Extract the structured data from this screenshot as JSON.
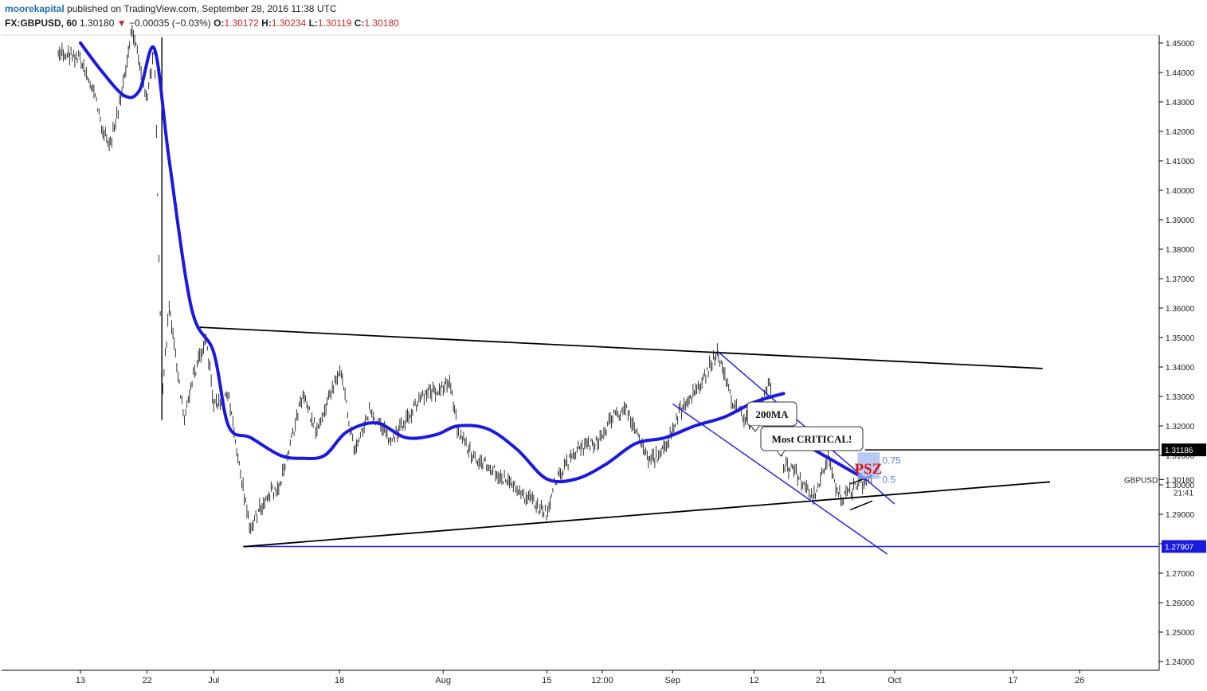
{
  "header": {
    "username": "moorekapital",
    "published": "published on TradingView.com, September 28, 2016 11:38 UTC",
    "symbol": "FX:GBPUSD, 60",
    "last": "1.30180",
    "arrow": "▼",
    "change": "−0.00035 (−0.03%)",
    "o_label": "O:",
    "o_value": "1.30172",
    "h_label": "H:",
    "h_value": "1.30234",
    "l_label": "L:",
    "l_value": "1.30119",
    "c_label": "C:",
    "c_value": "1.30180"
  },
  "colors": {
    "ma": "#1a1adf",
    "channel": "#2424e8",
    "trend": "#000000",
    "price_bars": "#000000",
    "psz_box": "#9db8f0",
    "psz_text": "#e01010",
    "fib_text": "#5b86e0",
    "support_label_bg": "#1a1adf",
    "resistance_label_bg": "#000000"
  },
  "chart_data": {
    "type": "ohlc",
    "symbol": "FX:GBPUSD",
    "timeframe": "60",
    "ylim": [
      1.235,
      1.455
    ],
    "y_ticks": [
      "1.45000",
      "1.44000",
      "1.43000",
      "1.42000",
      "1.41000",
      "1.40000",
      "1.39000",
      "1.38000",
      "1.37000",
      "1.36000",
      "1.35000",
      "1.34000",
      "1.33000",
      "1.32000",
      "1.31000",
      "1.30000",
      "1.29000",
      "1.28000",
      "1.27000",
      "1.26000",
      "1.25000",
      "1.24000"
    ],
    "x_ticks": [
      "13",
      "22",
      "Jul",
      "18",
      "Aug",
      "15",
      "12:00",
      "Sep",
      "12",
      "21",
      "Oct",
      "17",
      "26"
    ],
    "x_tick_dates": [
      "2016-06-13",
      "2016-06-22",
      "2016-07-01",
      "2016-07-18",
      "2016-08-01",
      "2016-08-15",
      "2016-08-22 12:00",
      "2016-09-01",
      "2016-09-12",
      "2016-09-21",
      "2016-10-01",
      "2016-10-17",
      "2016-10-26"
    ],
    "price_path": [
      [
        "2016-06-10",
        1.447
      ],
      [
        "2016-06-13",
        1.445
      ],
      [
        "2016-06-15",
        1.432
      ],
      [
        "2016-06-16",
        1.42
      ],
      [
        "2016-06-17",
        1.415
      ],
      [
        "2016-06-19",
        1.438
      ],
      [
        "2016-06-20",
        1.455
      ],
      [
        "2016-06-21",
        1.443
      ],
      [
        "2016-06-22",
        1.43
      ],
      [
        "2016-06-23",
        1.45
      ],
      [
        "2016-06-24",
        1.33
      ],
      [
        "2016-06-25",
        1.36
      ],
      [
        "2016-06-27",
        1.322
      ],
      [
        "2016-06-28",
        1.335
      ],
      [
        "2016-06-30",
        1.35
      ],
      [
        "2016-07-01",
        1.327
      ],
      [
        "2016-07-03",
        1.33
      ],
      [
        "2016-07-05",
        1.298
      ],
      [
        "2016-07-06",
        1.285
      ],
      [
        "2016-07-08",
        1.296
      ],
      [
        "2016-07-10",
        1.3
      ],
      [
        "2016-07-13",
        1.33
      ],
      [
        "2016-07-15",
        1.318
      ],
      [
        "2016-07-18",
        1.34
      ],
      [
        "2016-07-20",
        1.312
      ],
      [
        "2016-07-22",
        1.325
      ],
      [
        "2016-07-25",
        1.315
      ],
      [
        "2016-07-27",
        1.322
      ],
      [
        "2016-07-29",
        1.33
      ],
      [
        "2016-08-02",
        1.335
      ],
      [
        "2016-08-03",
        1.318
      ],
      [
        "2016-08-05",
        1.31
      ],
      [
        "2016-08-08",
        1.305
      ],
      [
        "2016-08-10",
        1.3
      ],
      [
        "2016-08-12",
        1.296
      ],
      [
        "2016-08-15",
        1.29
      ],
      [
        "2016-08-16",
        1.3
      ],
      [
        "2016-08-19",
        1.312
      ],
      [
        "2016-08-22",
        1.315
      ],
      [
        "2016-08-24",
        1.323
      ],
      [
        "2016-08-26",
        1.325
      ],
      [
        "2016-08-29",
        1.308
      ],
      [
        "2016-08-31",
        1.312
      ],
      [
        "2016-09-02",
        1.325
      ],
      [
        "2016-09-05",
        1.335
      ],
      [
        "2016-09-07",
        1.345
      ],
      [
        "2016-09-09",
        1.328
      ],
      [
        "2016-09-12",
        1.32
      ],
      [
        "2016-09-14",
        1.335
      ],
      [
        "2016-09-16",
        1.307
      ],
      [
        "2016-09-18",
        1.303
      ],
      [
        "2016-09-20",
        1.295
      ],
      [
        "2016-09-22",
        1.31
      ],
      [
        "2016-09-23",
        1.3
      ],
      [
        "2016-09-24",
        1.295
      ],
      [
        "2016-09-26",
        1.3
      ],
      [
        "2016-09-28",
        1.3018
      ]
    ],
    "ma_200": {
      "label": "200MA",
      "points": [
        [
          "2016-06-13",
          1.45
        ],
        [
          "2016-06-16",
          1.44
        ],
        [
          "2016-06-19",
          1.432
        ],
        [
          "2016-06-21",
          1.434
        ],
        [
          "2016-06-23",
          1.448
        ],
        [
          "2016-06-25",
          1.41
        ],
        [
          "2016-06-28",
          1.36
        ],
        [
          "2016-07-01",
          1.345
        ],
        [
          "2016-07-03",
          1.32
        ],
        [
          "2016-07-06",
          1.316
        ],
        [
          "2016-07-10",
          1.31
        ],
        [
          "2016-07-13",
          1.309
        ],
        [
          "2016-07-16",
          1.31
        ],
        [
          "2016-07-19",
          1.318
        ],
        [
          "2016-07-23",
          1.321
        ],
        [
          "2016-07-27",
          1.316
        ],
        [
          "2016-07-31",
          1.317
        ],
        [
          "2016-08-03",
          1.32
        ],
        [
          "2016-08-07",
          1.319
        ],
        [
          "2016-08-11",
          1.312
        ],
        [
          "2016-08-15",
          1.302
        ],
        [
          "2016-08-19",
          1.302
        ],
        [
          "2016-08-23",
          1.307
        ],
        [
          "2016-08-27",
          1.314
        ],
        [
          "2016-08-31",
          1.316
        ],
        [
          "2016-09-04",
          1.32
        ],
        [
          "2016-09-08",
          1.323
        ],
        [
          "2016-09-12",
          1.328
        ],
        [
          "2016-09-16",
          1.331
        ]
      ]
    },
    "levels": [
      {
        "name": "resistance",
        "value": 1.31186,
        "label": "1.31186"
      },
      {
        "name": "support",
        "value": 1.27907,
        "label": "1.27907"
      }
    ],
    "current_price": {
      "label": "GBPUSD",
      "value": "1.30180",
      "countdown": "21:41"
    },
    "trendlines": [
      {
        "name": "triangle-top",
        "from": [
          "2016-06-29",
          1.3535
        ],
        "to": [
          "2016-10-21",
          1.3395
        ]
      },
      {
        "name": "triangle-bottom",
        "from": [
          "2016-07-05",
          1.279
        ],
        "to": [
          "2016-10-22",
          1.301
        ]
      },
      {
        "name": "channel-upper",
        "from": [
          "2016-09-07",
          1.3455
        ],
        "to": [
          "2016-10-01",
          1.2935
        ]
      },
      {
        "name": "channel-lower",
        "from": [
          "2016-09-01",
          1.3275
        ],
        "to": [
          "2016-09-30",
          1.2765
        ]
      }
    ],
    "psz": {
      "label": "PSZ",
      "y_top": 1.311,
      "y_bottom": 1.302,
      "fib_upper": "0.75",
      "fib_lower": "0.5"
    },
    "annotations": [
      {
        "text": "200MA"
      },
      {
        "text": "Most CRITICAL!"
      }
    ]
  }
}
